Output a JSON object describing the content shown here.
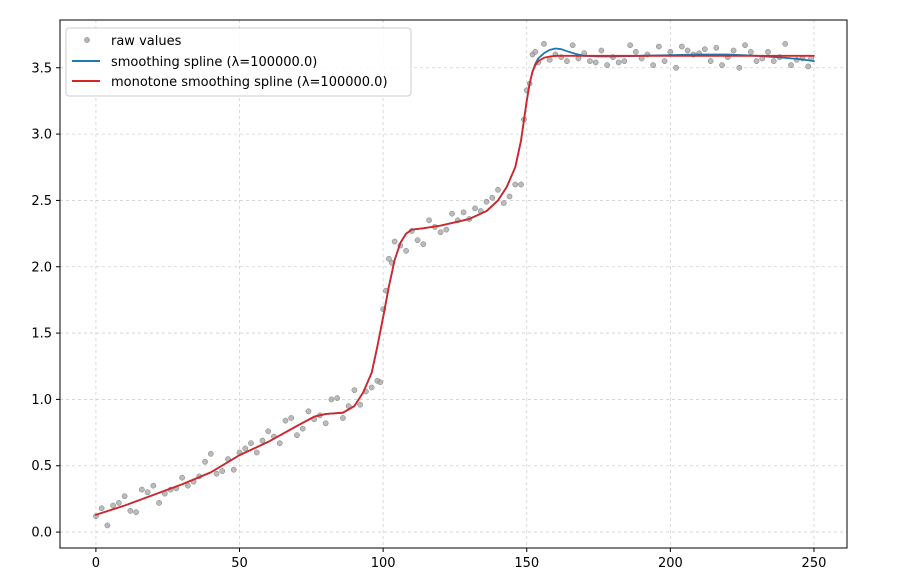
{
  "chart_data": {
    "type": "line",
    "title": "",
    "xlabel": "",
    "ylabel": "",
    "xlim": [
      -12.5,
      261.5
    ],
    "ylim": [
      -0.12,
      3.86
    ],
    "xticks": [
      0,
      50,
      100,
      150,
      200,
      250
    ],
    "yticks": [
      0.0,
      0.5,
      1.0,
      1.5,
      2.0,
      2.5,
      3.0,
      3.5
    ],
    "xtick_labels": [
      "0",
      "50",
      "100",
      "150",
      "200",
      "250"
    ],
    "ytick_labels": [
      "0.0",
      "0.5",
      "1.0",
      "1.5",
      "2.0",
      "2.5",
      "3.0",
      "3.5"
    ],
    "grid": true,
    "legend_position": "top-left",
    "legend": [
      {
        "label": "raw values",
        "kind": "marker",
        "color": "#9e9e9e"
      },
      {
        "label": "smoothing spline (λ=100000.0)",
        "kind": "line",
        "color": "#1f77b4"
      },
      {
        "label": "monotone smoothing spline (λ=100000.0)",
        "kind": "line",
        "color": "#d62728"
      }
    ],
    "series": [
      {
        "name": "raw values",
        "kind": "scatter",
        "color": "#9e9e9e",
        "x": [
          0,
          2,
          4,
          6,
          8,
          10,
          12,
          14,
          16,
          18,
          20,
          22,
          24,
          26,
          28,
          30,
          32,
          34,
          36,
          38,
          40,
          42,
          44,
          46,
          48,
          50,
          52,
          54,
          56,
          58,
          60,
          62,
          64,
          66,
          68,
          70,
          72,
          74,
          76,
          78,
          80,
          82,
          84,
          86,
          88,
          90,
          92,
          94,
          96,
          98,
          99,
          100,
          101,
          102,
          103,
          104,
          106,
          108,
          110,
          112,
          114,
          116,
          118,
          120,
          122,
          124,
          126,
          128,
          130,
          132,
          134,
          136,
          138,
          140,
          142,
          144,
          146,
          148,
          149,
          150,
          151,
          152,
          153,
          154,
          156,
          158,
          160,
          162,
          164,
          166,
          168,
          170,
          172,
          174,
          176,
          178,
          180,
          182,
          184,
          186,
          188,
          190,
          192,
          194,
          196,
          198,
          200,
          202,
          204,
          206,
          208,
          210,
          212,
          214,
          216,
          218,
          220,
          222,
          224,
          226,
          228,
          230,
          232,
          234,
          236,
          238,
          240,
          242,
          244,
          246,
          248,
          249
        ],
        "y": [
          0.12,
          0.18,
          0.05,
          0.2,
          0.22,
          0.27,
          0.16,
          0.15,
          0.32,
          0.3,
          0.35,
          0.22,
          0.29,
          0.32,
          0.33,
          0.41,
          0.35,
          0.38,
          0.42,
          0.53,
          0.59,
          0.44,
          0.46,
          0.55,
          0.47,
          0.6,
          0.63,
          0.67,
          0.6,
          0.69,
          0.76,
          0.72,
          0.67,
          0.84,
          0.86,
          0.73,
          0.78,
          0.91,
          0.85,
          0.88,
          0.82,
          1.0,
          1.01,
          0.86,
          0.95,
          1.07,
          0.96,
          1.06,
          1.09,
          1.14,
          1.13,
          1.68,
          1.82,
          2.06,
          2.03,
          2.19,
          2.16,
          2.12,
          2.27,
          2.2,
          2.17,
          2.35,
          2.3,
          2.26,
          2.28,
          2.4,
          2.35,
          2.41,
          2.36,
          2.44,
          2.42,
          2.49,
          2.52,
          2.58,
          2.48,
          2.53,
          2.62,
          2.62,
          3.11,
          3.33,
          3.38,
          3.6,
          3.62,
          3.54,
          3.68,
          3.56,
          3.6,
          3.58,
          3.55,
          3.67,
          3.57,
          3.61,
          3.55,
          3.54,
          3.63,
          3.52,
          3.58,
          3.54,
          3.55,
          3.67,
          3.62,
          3.57,
          3.6,
          3.52,
          3.66,
          3.55,
          3.62,
          3.5,
          3.66,
          3.63,
          3.6,
          3.61,
          3.64,
          3.55,
          3.65,
          3.52,
          3.58,
          3.63,
          3.5,
          3.67,
          3.62,
          3.55,
          3.57,
          3.62,
          3.55,
          3.58,
          3.68,
          3.52,
          3.56,
          3.57,
          3.51,
          3.57
        ]
      },
      {
        "name": "smoothing spline (λ=100000.0)",
        "kind": "line",
        "color": "#1f77b4",
        "x": [
          0,
          10,
          20,
          30,
          40,
          50,
          60,
          70,
          76,
          80,
          86,
          90,
          93,
          96,
          98,
          100,
          102,
          104,
          106,
          108,
          110,
          114,
          120,
          130,
          136,
          140,
          143,
          146,
          148,
          149,
          150,
          151,
          152,
          153,
          154,
          156,
          158,
          160,
          162,
          164,
          167,
          170,
          175,
          180,
          190,
          200,
          210,
          220,
          230,
          240,
          245,
          250
        ],
        "y": [
          0.13,
          0.2,
          0.28,
          0.36,
          0.45,
          0.58,
          0.68,
          0.8,
          0.87,
          0.89,
          0.9,
          0.95,
          1.05,
          1.2,
          1.4,
          1.62,
          1.85,
          2.05,
          2.18,
          2.25,
          2.28,
          2.29,
          2.31,
          2.36,
          2.42,
          2.5,
          2.6,
          2.75,
          2.95,
          3.1,
          3.25,
          3.38,
          3.47,
          3.53,
          3.57,
          3.61,
          3.635,
          3.645,
          3.64,
          3.625,
          3.605,
          3.59,
          3.585,
          3.585,
          3.59,
          3.595,
          3.6,
          3.6,
          3.59,
          3.575,
          3.565,
          3.55
        ]
      },
      {
        "name": "monotone smoothing spline (λ=100000.0)",
        "kind": "line",
        "color": "#d62728",
        "x": [
          0,
          10,
          20,
          30,
          40,
          50,
          60,
          70,
          76,
          80,
          86,
          90,
          93,
          96,
          98,
          100,
          102,
          104,
          106,
          108,
          110,
          114,
          120,
          130,
          136,
          140,
          143,
          146,
          148,
          149,
          150,
          151,
          152,
          153,
          154,
          156,
          158,
          160,
          165,
          170,
          180,
          200,
          220,
          240,
          250
        ],
        "y": [
          0.13,
          0.2,
          0.28,
          0.36,
          0.45,
          0.58,
          0.68,
          0.8,
          0.87,
          0.89,
          0.9,
          0.95,
          1.05,
          1.2,
          1.4,
          1.62,
          1.85,
          2.05,
          2.18,
          2.25,
          2.28,
          2.29,
          2.31,
          2.36,
          2.42,
          2.5,
          2.6,
          2.75,
          2.95,
          3.1,
          3.25,
          3.38,
          3.47,
          3.52,
          3.55,
          3.575,
          3.585,
          3.59,
          3.59,
          3.59,
          3.59,
          3.59,
          3.59,
          3.59,
          3.59
        ]
      }
    ]
  }
}
